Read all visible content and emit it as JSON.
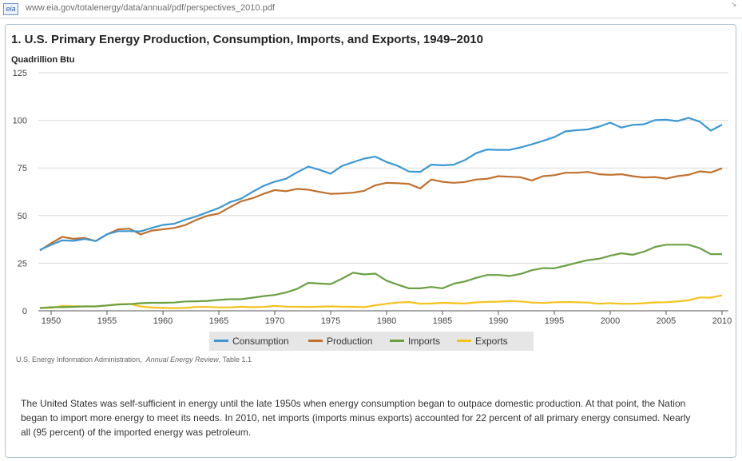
{
  "browser": {
    "favicon_text": "eia",
    "url": "www.eia.gov/totalenergy/data/annual/pdf/perspectives_2010.pdf"
  },
  "figure": {
    "title": "1. U.S. Primary Energy Production, Consumption, Imports, and Exports, 1949–2010",
    "source_prefix": "U.S. Energy Information Administration,",
    "source_publication": "Annual Energy Review",
    "source_table": ", Table 1.1",
    "paragraph": "The United States was self-sufficient in energy until the late 1950s when energy consumption began to outpace domestic production. At that point, the Nation began to import more energy to meet its needs. In 2010, net imports (imports minus exports) accounted for 22 percent of all primary energy consumed. Nearly all (95 percent) of the imported energy was petroleum."
  },
  "chart_data": {
    "type": "line",
    "title": "1. U.S. Primary Energy Production, Consumption, Imports, and Exports, 1949–2010",
    "ylabel": "Quadrillion Btu",
    "xlabel": "",
    "xlim": [
      1949,
      2010
    ],
    "ylim": [
      0,
      125
    ],
    "x_ticks": [
      1950,
      1955,
      1960,
      1965,
      1970,
      1975,
      1980,
      1985,
      1990,
      1995,
      2000,
      2005,
      2010
    ],
    "y_ticks": [
      0,
      25,
      50,
      75,
      100,
      125
    ],
    "grid": "horizontal",
    "legend_position": "bottom",
    "x": [
      1949,
      1950,
      1951,
      1952,
      1953,
      1954,
      1955,
      1956,
      1957,
      1958,
      1959,
      1960,
      1961,
      1962,
      1963,
      1964,
      1965,
      1966,
      1967,
      1968,
      1969,
      1970,
      1971,
      1972,
      1973,
      1974,
      1975,
      1976,
      1977,
      1978,
      1979,
      1980,
      1981,
      1982,
      1983,
      1984,
      1985,
      1986,
      1987,
      1988,
      1989,
      1990,
      1991,
      1992,
      1993,
      1994,
      1995,
      1996,
      1997,
      1998,
      1999,
      2000,
      2001,
      2002,
      2003,
      2004,
      2005,
      2006,
      2007,
      2008,
      2009,
      2010
    ],
    "series": [
      {
        "name": "Consumption",
        "color": "#3b97d3",
        "values": [
          32,
          34.6,
          37,
          36.7,
          37.7,
          36.6,
          40.2,
          41.8,
          41.8,
          41.7,
          43.5,
          45.1,
          45.7,
          47.8,
          49.6,
          51.8,
          54,
          57,
          58.9,
          62.4,
          65.6,
          67.8,
          69.3,
          72.7,
          75.7,
          74,
          72,
          76,
          78,
          79.9,
          80.9,
          78.1,
          76.1,
          73.1,
          72.9,
          76.7,
          76.4,
          76.7,
          79.1,
          82.7,
          84.7,
          84.5,
          84.5,
          85.8,
          87.4,
          89.2,
          91.2,
          94.2,
          94.8,
          95.2,
          96.7,
          98.8,
          96.2,
          97.6,
          97.9,
          100.1,
          100.3,
          99.6,
          101.3,
          99.3,
          94.6,
          97.7
        ]
      },
      {
        "name": "Production",
        "color": "#c0702e",
        "values": [
          31.7,
          35.5,
          38.8,
          37.8,
          38.2,
          36.6,
          40.1,
          42.8,
          43.1,
          40.1,
          42.1,
          42.8,
          43.5,
          45,
          47.8,
          49.9,
          51.1,
          54.4,
          57.5,
          59.1,
          61.4,
          63.4,
          62.8,
          64,
          63.6,
          62.4,
          61.4,
          61.6,
          62,
          63,
          65.9,
          67.2,
          67,
          66.6,
          64.2,
          68.9,
          67.7,
          67.2,
          67.6,
          68.9,
          69.3,
          70.7,
          70.4,
          70.1,
          68.4,
          70.7,
          71.2,
          72.5,
          72.5,
          72.9,
          71.7,
          71.4,
          71.7,
          70.7,
          70,
          70.2,
          69.4,
          70.7,
          71.4,
          73.2,
          72.6,
          74.8
        ]
      },
      {
        "name": "Imports",
        "color": "#6aa042",
        "values": [
          1.4,
          1.9,
          1.9,
          2.1,
          2.3,
          2.3,
          2.8,
          3.3,
          3.5,
          4,
          4.2,
          4.2,
          4.3,
          4.9,
          5,
          5.2,
          5.7,
          6.1,
          6.1,
          6.9,
          7.7,
          8.3,
          9.6,
          11.5,
          14.7,
          14.3,
          14,
          16.8,
          20,
          19.1,
          19.5,
          15.8,
          13.7,
          11.8,
          11.8,
          12.5,
          11.8,
          14.2,
          15.4,
          17.3,
          18.8,
          18.8,
          18.3,
          19.4,
          21.3,
          22.4,
          22.3,
          23.7,
          25.2,
          26.6,
          27.3,
          28.9,
          30.2,
          29.4,
          31,
          33.5,
          34.7,
          34.7,
          34.7,
          32.9,
          29.7,
          29.8
        ]
      },
      {
        "name": "Exports",
        "color": "#f2c21d",
        "values": [
          1.6,
          1.5,
          2.6,
          2.4,
          2.3,
          2.3,
          2.8,
          3.4,
          3.7,
          2.3,
          1.7,
          1.5,
          1.4,
          1.5,
          2,
          2,
          1.8,
          1.8,
          2.1,
          1.9,
          2,
          2.6,
          2.2,
          2.1,
          2,
          2.2,
          2.3,
          2.2,
          2.1,
          1.9,
          2.9,
          3.7,
          4.3,
          4.6,
          3.7,
          3.8,
          4.2,
          4,
          3.8,
          4.4,
          4.7,
          4.8,
          5.1,
          4.9,
          4.3,
          4.1,
          4.5,
          4.6,
          4.5,
          4.3,
          3.7,
          4,
          3.7,
          3.7,
          4,
          4.4,
          4.5,
          4.9,
          5.5,
          7,
          6.9,
          8.1
        ]
      }
    ]
  }
}
